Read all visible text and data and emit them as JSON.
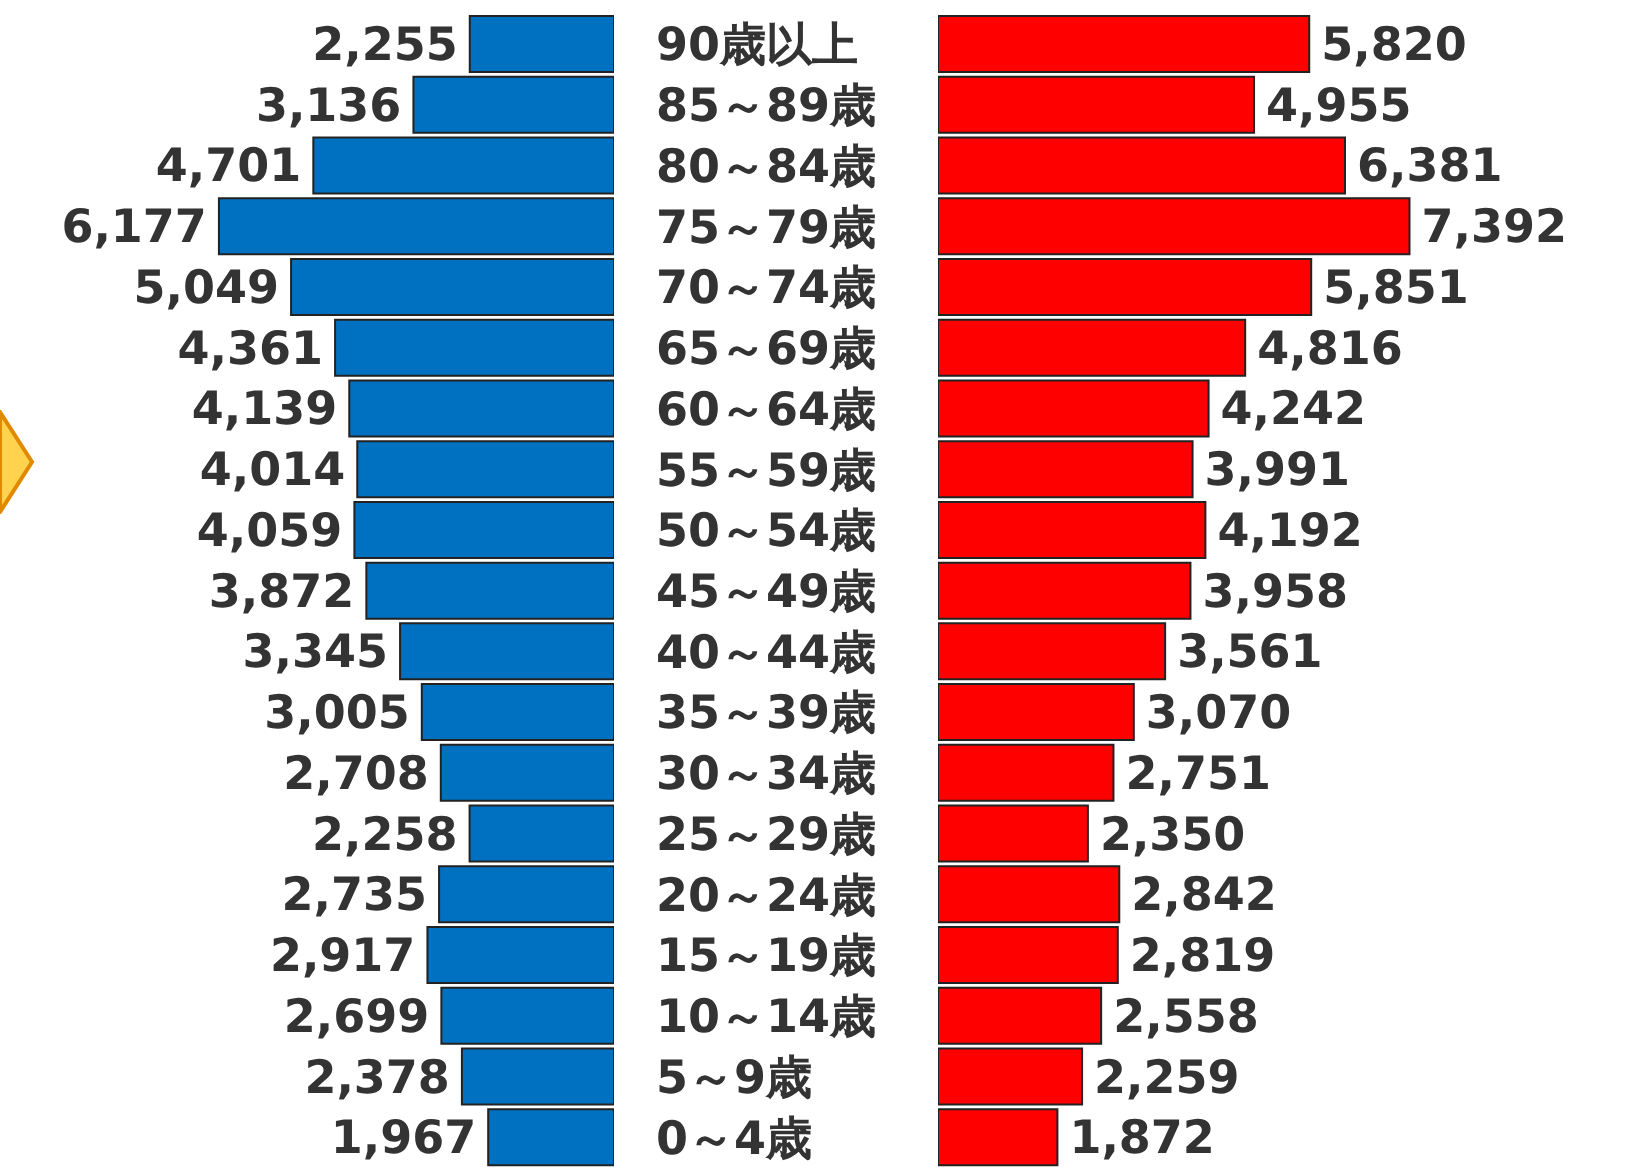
{
  "chart_data": [
    {
      "type": "bar",
      "orientation": "horizontal",
      "tick_labels": "y",
      "xlim": [
        9600,
        0
      ],
      "color": "#0070c0",
      "categories": [
        "90歳以上",
        "85～89歳",
        "80～84歳",
        "75～79歳",
        "70～74歳",
        "65～69歳",
        "60～64歳",
        "55～59歳",
        "50～54歳",
        "45～49歳",
        "40～44歳",
        "35～39歳",
        "30～34歳",
        "25～29歳",
        "20～24歳",
        "15～19歳",
        "10～14歳",
        "5～9歳",
        "0～4歳"
      ],
      "values": [
        2255,
        3136,
        4701,
        6177,
        5049,
        4361,
        4139,
        4014,
        4059,
        3872,
        3345,
        3005,
        2708,
        2258,
        2735,
        2917,
        2699,
        2378,
        1967
      ],
      "value_labels": [
        "2,255",
        "3,136",
        "4,701",
        "6,177",
        "5,049",
        "4,361",
        "4,139",
        "4,014",
        "4,059",
        "3,872",
        "3,345",
        "3,005",
        "2,708",
        "2,258",
        "2,735",
        "2,917",
        "2,699",
        "2,378",
        "1,967"
      ]
    },
    {
      "type": "bar",
      "orientation": "horizontal",
      "tick_labels": false,
      "xlim": [
        0,
        11100
      ],
      "color": "#ff0000",
      "categories": [
        null,
        null,
        null,
        null,
        null,
        null,
        null,
        null,
        null,
        null,
        null,
        null,
        null,
        null,
        null,
        null,
        null,
        null,
        null
      ],
      "values": [
        5820,
        4955,
        6381,
        7392,
        5851,
        4816,
        4242,
        3991,
        4192,
        3958,
        3561,
        3070,
        2751,
        2350,
        2842,
        2819,
        2558,
        2259,
        1872
      ],
      "value_labels": [
        "5,820",
        "4,955",
        "6,381",
        "7,392",
        "5,851",
        "4,816",
        "4,242",
        "3,991",
        "4,192",
        "3,958",
        "3,561",
        "3,070",
        "2,751",
        "2,350",
        "2,842",
        "2,819",
        "2,558",
        "2,259",
        "1,872"
      ]
    }
  ]
}
